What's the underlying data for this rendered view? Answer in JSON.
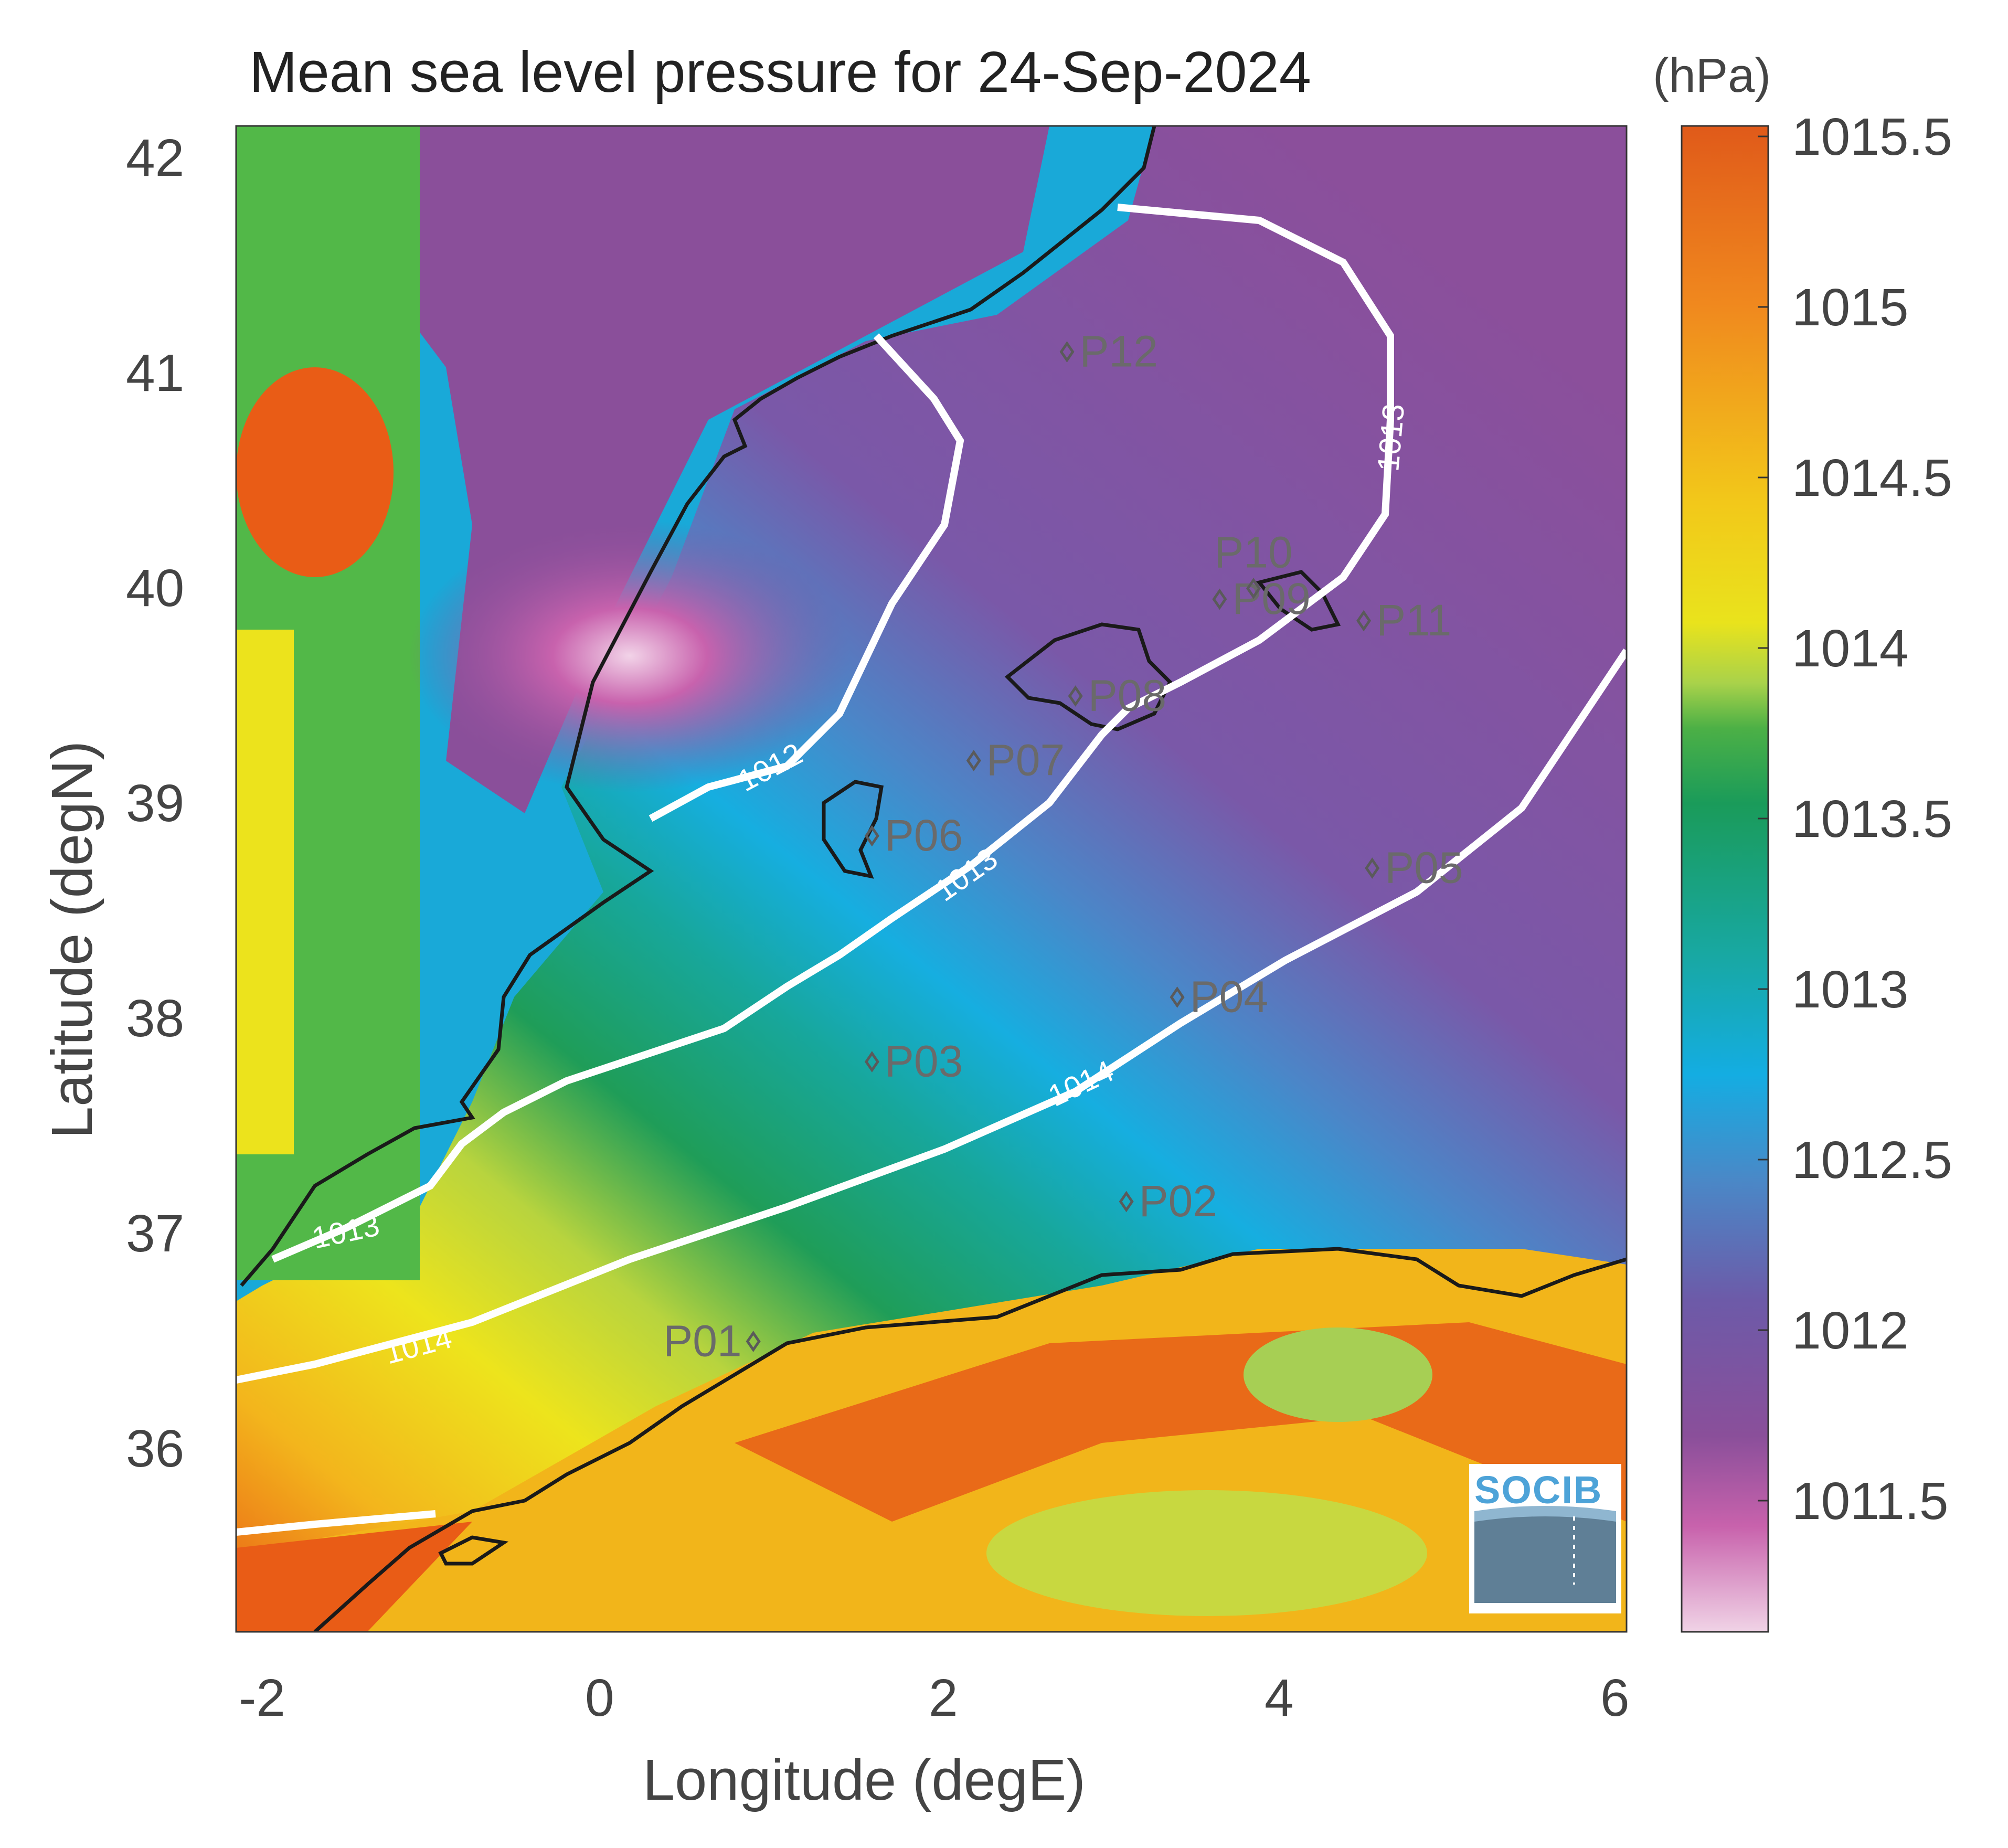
{
  "title": "Mean sea level pressure for 24-Sep-2024",
  "colorbar": {
    "unit": "(hPa)",
    "ticks": [
      "1015.5",
      "1015",
      "1014.5",
      "1014",
      "1013.5",
      "1013",
      "1012.5",
      "1012",
      "1011.5"
    ],
    "colors": [
      "#e95c16",
      "#f0881e",
      "#f3c21a",
      "#eee21a",
      "#a8d24a",
      "#1a9b5a",
      "#19a8a0",
      "#12ade3",
      "#4a86c6",
      "#6a5aa8",
      "#8a4f9a",
      "#c962ad",
      "#eecbe2"
    ]
  },
  "axes": {
    "xlabel": "Longitude (degE)",
    "ylabel": "Latitude (degN)",
    "xticks": [
      "-2",
      "0",
      "2",
      "4",
      "6"
    ],
    "yticks": [
      "42",
      "41",
      "40",
      "39",
      "38",
      "37",
      "36"
    ]
  },
  "stations": [
    {
      "label": "P01",
      "lon": 0.85,
      "lat": 36.5
    },
    {
      "label": "P02",
      "lon": 3.05,
      "lat": 37.15
    },
    {
      "label": "P03",
      "lon": 1.55,
      "lat": 37.8
    },
    {
      "label": "P04",
      "lon": 3.35,
      "lat": 38.1
    },
    {
      "label": "P05",
      "lon": 4.5,
      "lat": 38.7
    },
    {
      "label": "P06",
      "lon": 1.55,
      "lat": 38.85
    },
    {
      "label": "P07",
      "lon": 2.15,
      "lat": 39.2
    },
    {
      "label": "P08",
      "lon": 2.75,
      "lat": 39.5
    },
    {
      "label": "P09",
      "lon": 3.6,
      "lat": 39.95
    },
    {
      "label": "P10",
      "lon": 3.8,
      "lat": 40.0
    },
    {
      "label": "P11",
      "lon": 4.45,
      "lat": 39.85
    },
    {
      "label": "P12",
      "lon": 2.7,
      "lat": 41.1
    }
  ],
  "contour_labels": [
    "1012",
    "1013",
    "1013",
    "1013",
    "1014",
    "1014"
  ],
  "logo": {
    "text": "SOCIB",
    "icon": "socib-logo-icon"
  }
}
